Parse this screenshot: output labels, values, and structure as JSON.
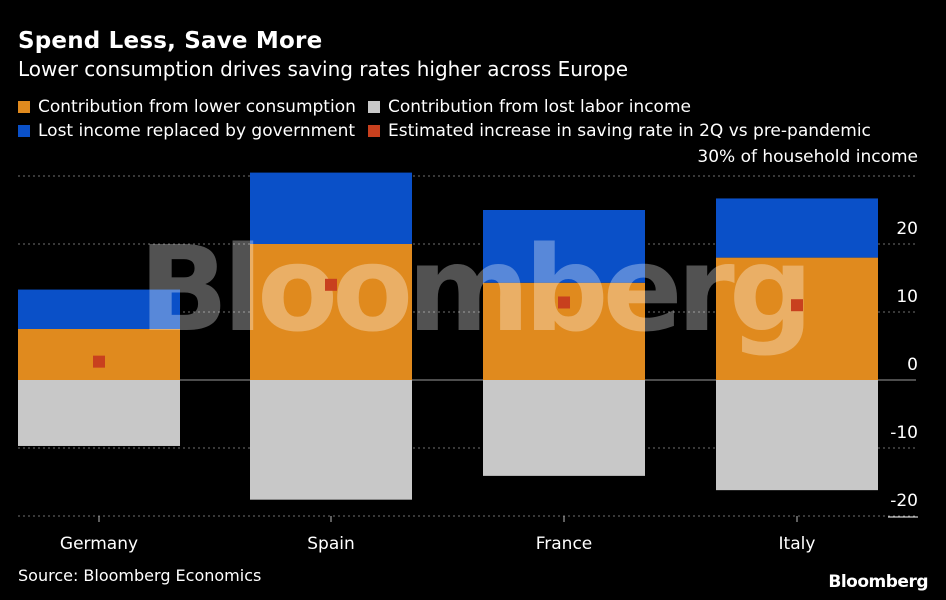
{
  "title": "Spend Less, Save More",
  "subtitle": "Lower consumption drives saving rates higher across Europe",
  "legend": [
    {
      "label": "Contribution from lower consumption",
      "color": "#e08a1e"
    },
    {
      "label": "Contribution from lost labor income",
      "color": "#c8c8c8"
    },
    {
      "label": "Lost income replaced by government",
      "color": "#0a50c8"
    },
    {
      "label": "Estimated increase in saving rate in 2Q vs pre-pandemic",
      "color": "#c8401e"
    }
  ],
  "unit_label": "30% of household income",
  "source": "Source: Bloomberg Economics",
  "logo": "Bloomberg",
  "watermark": "Bloomberg",
  "chart_data": {
    "type": "bar",
    "stacked": true,
    "categories": [
      "Germany",
      "Spain",
      "France",
      "Italy"
    ],
    "series": [
      {
        "name": "Contribution from lower consumption",
        "color": "#e08a1e",
        "values": [
          7.5,
          20,
          14.3,
          18
        ]
      },
      {
        "name": "Lost income replaced by government",
        "color": "#0a50c8",
        "values": [
          5.8,
          10.5,
          10.7,
          8.7
        ]
      },
      {
        "name": "Contribution from lost labor income",
        "color": "#c8c8c8",
        "values": [
          -9.7,
          -17.6,
          -14.1,
          -16.2
        ]
      }
    ],
    "markers": {
      "name": "Estimated increase in saving rate in 2Q vs pre-pandemic",
      "color": "#c8401e",
      "values": [
        2.7,
        14,
        11.4,
        11
      ]
    },
    "yticks": [
      30,
      20,
      10,
      0,
      -10,
      -20
    ],
    "ytick_labels": [
      "",
      "20",
      "10",
      "0",
      "-10",
      "-20"
    ],
    "ylim": [
      -20,
      30
    ],
    "grid": true,
    "legend_position": "top"
  }
}
